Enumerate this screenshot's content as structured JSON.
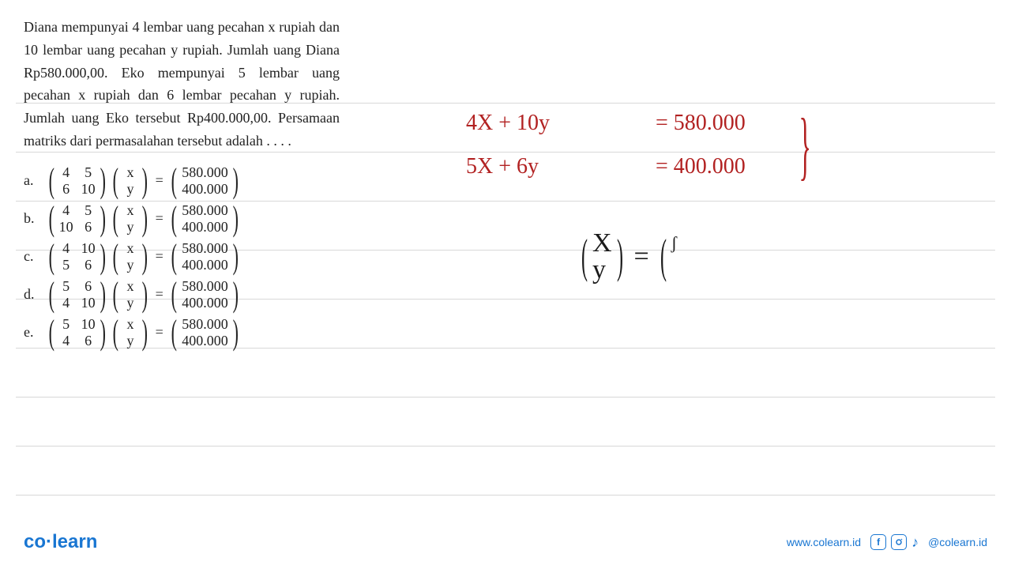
{
  "problem_text": "Diana mempunyai 4 lembar uang pecahan x rupiah dan 10 lembar uang pecahan y rupiah. Jumlah uang Diana Rp580.000,00. Eko mempunyai 5 lembar uang pecahan x rupiah dan 6 lembar pecahan y rupiah. Jumlah uang Eko tersebut Rp400.000,00. Persamaan matriks dari permasalahan tersebut adalah . . . .",
  "options": [
    {
      "label": "a.",
      "A": [
        [
          "4",
          "5"
        ],
        [
          "6",
          "10"
        ]
      ],
      "x": [
        "x",
        "y"
      ],
      "b": [
        "580.000",
        "400.000"
      ]
    },
    {
      "label": "b.",
      "A": [
        [
          "4",
          "5"
        ],
        [
          "10",
          "6"
        ]
      ],
      "x": [
        "x",
        "y"
      ],
      "b": [
        "580.000",
        "400.000"
      ]
    },
    {
      "label": "c.",
      "A": [
        [
          "4",
          "10"
        ],
        [
          "5",
          "6"
        ]
      ],
      "x": [
        "x",
        "y"
      ],
      "b": [
        "580.000",
        "400.000"
      ]
    },
    {
      "label": "d.",
      "A": [
        [
          "5",
          "6"
        ],
        [
          "4",
          "10"
        ]
      ],
      "x": [
        "x",
        "y"
      ],
      "b": [
        "580.000",
        "400.000"
      ]
    },
    {
      "label": "e.",
      "A": [
        [
          "5",
          "10"
        ],
        [
          "4",
          "6"
        ]
      ],
      "x": [
        "x",
        "y"
      ],
      "b": [
        "580.000",
        "400.000"
      ]
    }
  ],
  "red_eq1": {
    "lhs": "4X  +  10y",
    "rhs": "=  580.000"
  },
  "red_eq2": {
    "lhs": "5X  +   6y",
    "rhs": "=   400.000"
  },
  "black_eq": {
    "left": "X",
    "left2": "y",
    "right": "ʃ"
  },
  "ruled_line_positions": [
    130,
    192,
    254,
    316,
    378,
    440,
    502,
    564,
    626
  ],
  "footer": {
    "logo_a": "co",
    "logo_b": "learn",
    "url": "www.colearn.id",
    "handle": "@colearn.id"
  },
  "colors": {
    "red": "#b22222",
    "black": "#1a1a1a",
    "blue": "#1976d2",
    "rule": "#d8d8d8"
  }
}
